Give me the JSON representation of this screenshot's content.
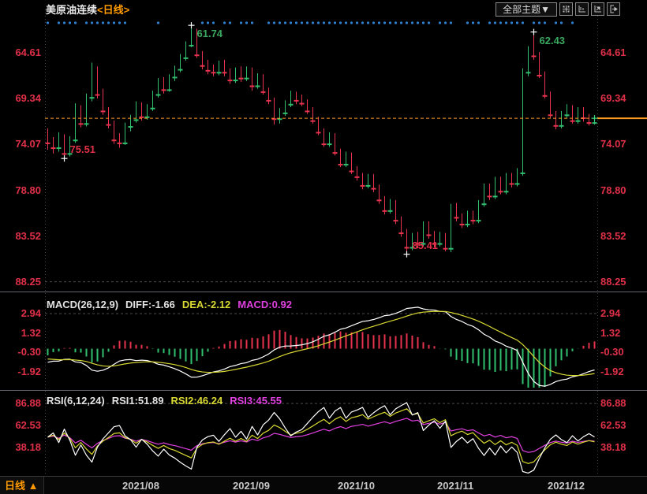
{
  "header": {
    "title": "美原油连续",
    "period_tag": "<日线>",
    "theme_button": "全部主题▼",
    "toolbar_icons": [
      "crosshair",
      "axis-settings",
      "axis-zoom",
      "exit"
    ]
  },
  "main_chart": {
    "last_price": 71.35,
    "annotations": [
      {
        "index": 3,
        "price": 75.51,
        "label": "75.51",
        "side": "high",
        "color": "#e03048"
      },
      {
        "index": 65,
        "price": 85.41,
        "label": "85.41",
        "side": "high",
        "color": "#e03048"
      },
      {
        "index": 26,
        "price": 61.74,
        "label": "61.74",
        "side": "low",
        "color": "#3aa85f"
      },
      {
        "index": 88,
        "price": 62.43,
        "label": "62.43",
        "side": "low",
        "color": "#3aa85f"
      }
    ],
    "signal_dot_indices": [
      0,
      2,
      3,
      4,
      5,
      7,
      8,
      9,
      10,
      11,
      12,
      13,
      14,
      20,
      28,
      29,
      30,
      32,
      33,
      35,
      36,
      37,
      40,
      41,
      42,
      43,
      44,
      45,
      46,
      47,
      48,
      49,
      50,
      51,
      52,
      53,
      54,
      55,
      56,
      57,
      58,
      59,
      60,
      61,
      62,
      63,
      64,
      65,
      66,
      67,
      68,
      69,
      71,
      72,
      73,
      76,
      77,
      78,
      80,
      81,
      82,
      83,
      84,
      85,
      86,
      88,
      89,
      90,
      92,
      93,
      95
    ]
  },
  "macd_panel": {
    "label": "MACD(26,12,9)",
    "diff_label": "DIFF:-1.66",
    "dea_label": "DEA:-2.12",
    "macd_label": "MACD:0.92",
    "params": [
      26,
      12,
      9
    ]
  },
  "rsi_panel": {
    "label": "RSI(6,12,24)",
    "rsi1_label": "RSI1:51.89",
    "rsi2_label": "RSI2:46.24",
    "rsi3_label": "RSI3:45.55",
    "params": [
      6,
      12,
      24
    ]
  },
  "bottom_bar": {
    "period_label": "日线",
    "arrow": "▲",
    "month_labels": [
      {
        "label": "2021/08",
        "index": 14
      },
      {
        "label": "2021/09",
        "index": 34
      },
      {
        "label": "2021/10",
        "index": 53
      },
      {
        "label": "2021/11",
        "index": 71
      },
      {
        "label": "2021/12",
        "index": 91
      }
    ]
  },
  "colors": {
    "up": "#e8334e",
    "down": "#31bf6e",
    "axis_text": "#e03048",
    "last_price_line": "#ff9b21",
    "signal_dot": "#2f80d0",
    "diff_line": "#ffffff",
    "dea_line": "#d8d832",
    "rsi3_line": "#e040e0",
    "grid": "#4a4a52",
    "divider": "#63636d"
  },
  "chart_data": {
    "type": "candlestick+indicators",
    "title": "美原油连续 <日线>",
    "x_axis_months": [
      "2021/08",
      "2021/09",
      "2021/10",
      "2021/11",
      "2021/12"
    ],
    "main_y_ticks": [
      88.25,
      83.52,
      78.8,
      74.07,
      69.34,
      64.61
    ],
    "main_y_range": [
      60.1,
      89.1
    ],
    "macd_y_ticks": [
      2.94,
      1.32,
      -0.3,
      -1.92
    ],
    "macd_y_range": [
      4.66,
      -3.4
    ],
    "rsi_y_ticks": [
      86.88,
      62.53,
      38.18
    ],
    "rsi_y_range": [
      100,
      10
    ],
    "last_close": 71.35,
    "candles": [
      [
        73.2,
        74.6,
        72.4,
        73.9
      ],
      [
        73.9,
        75.0,
        73.3,
        74.4
      ],
      [
        74.4,
        74.8,
        72.8,
        73.3
      ],
      [
        73.3,
        75.51,
        73.0,
        75.0
      ],
      [
        75.0,
        75.3,
        73.2,
        73.6
      ],
      [
        73.6,
        73.9,
        69.8,
        70.5
      ],
      [
        70.5,
        72.3,
        70.0,
        71.9
      ],
      [
        71.9,
        72.2,
        68.8,
        69.2
      ],
      [
        69.2,
        69.6,
        65.6,
        66.4
      ],
      [
        66.4,
        69.3,
        66.0,
        68.9
      ],
      [
        68.9,
        71.0,
        68.3,
        70.6
      ],
      [
        70.6,
        72.4,
        70.2,
        72.0
      ],
      [
        72.0,
        74.0,
        71.6,
        73.6
      ],
      [
        73.6,
        74.4,
        72.9,
        73.9
      ],
      [
        73.9,
        74.1,
        71.8,
        72.2
      ],
      [
        72.2,
        72.7,
        71.0,
        71.5
      ],
      [
        71.5,
        71.8,
        69.6,
        70.0
      ],
      [
        70.0,
        71.6,
        69.7,
        71.2
      ],
      [
        71.2,
        71.5,
        69.9,
        70.3
      ],
      [
        70.3,
        70.6,
        68.5,
        68.9
      ],
      [
        68.9,
        69.2,
        67.2,
        67.6
      ],
      [
        67.6,
        68.8,
        67.1,
        68.4
      ],
      [
        68.4,
        68.6,
        66.8,
        67.1
      ],
      [
        67.1,
        67.5,
        65.9,
        66.3
      ],
      [
        66.3,
        66.6,
        64.7,
        65.1
      ],
      [
        65.1,
        65.4,
        63.4,
        63.8
      ],
      [
        63.8,
        64.0,
        61.74,
        62.4
      ],
      [
        62.4,
        65.1,
        62.1,
        64.8
      ],
      [
        64.8,
        66.3,
        64.4,
        65.9
      ],
      [
        65.9,
        66.8,
        65.3,
        66.4
      ],
      [
        66.4,
        67.0,
        65.8,
        66.6
      ],
      [
        66.6,
        66.9,
        65.4,
        65.8
      ],
      [
        65.8,
        67.0,
        65.3,
        66.6
      ],
      [
        66.6,
        67.8,
        66.2,
        67.4
      ],
      [
        67.4,
        67.7,
        66.1,
        66.5
      ],
      [
        66.5,
        67.6,
        66.0,
        67.2
      ],
      [
        67.2,
        67.5,
        66.0,
        66.4
      ],
      [
        66.4,
        68.5,
        66.1,
        68.0
      ],
      [
        68.0,
        68.3,
        66.7,
        67.1
      ],
      [
        67.1,
        68.9,
        66.8,
        68.6
      ],
      [
        68.6,
        69.9,
        68.2,
        69.5
      ],
      [
        69.5,
        72.0,
        69.2,
        71.4
      ],
      [
        71.4,
        71.9,
        70.3,
        70.8
      ],
      [
        70.8,
        71.1,
        69.5,
        69.9
      ],
      [
        69.9,
        70.2,
        68.5,
        69.0
      ],
      [
        69.0,
        69.9,
        68.6,
        69.5
      ],
      [
        69.5,
        70.1,
        68.9,
        69.8
      ],
      [
        69.8,
        70.9,
        69.4,
        70.6
      ],
      [
        70.6,
        71.9,
        70.2,
        71.6
      ],
      [
        71.6,
        73.1,
        71.2,
        72.8
      ],
      [
        72.8,
        74.3,
        72.4,
        74.0
      ],
      [
        74.0,
        74.3,
        72.8,
        73.2
      ],
      [
        73.2,
        75.2,
        72.9,
        74.9
      ],
      [
        74.9,
        76.4,
        74.5,
        76.1
      ],
      [
        76.1,
        76.4,
        74.8,
        75.2
      ],
      [
        75.2,
        77.1,
        74.9,
        76.8
      ],
      [
        76.8,
        77.8,
        76.3,
        77.4
      ],
      [
        77.4,
        78.7,
        77.0,
        78.3
      ],
      [
        78.3,
        78.6,
        77.1,
        77.5
      ],
      [
        77.5,
        79.0,
        77.1,
        78.6
      ],
      [
        78.6,
        80.2,
        78.2,
        79.8
      ],
      [
        79.8,
        81.3,
        79.4,
        80.9
      ],
      [
        80.9,
        81.2,
        79.7,
        80.2
      ],
      [
        80.2,
        82.3,
        79.8,
        81.9
      ],
      [
        81.9,
        83.6,
        81.5,
        83.2
      ],
      [
        83.2,
        85.41,
        82.8,
        84.7
      ],
      [
        84.7,
        85.0,
        83.2,
        83.6
      ],
      [
        83.6,
        84.8,
        83.1,
        84.3
      ],
      [
        84.3,
        84.6,
        82.0,
        82.4
      ],
      [
        82.4,
        83.8,
        82.0,
        83.4
      ],
      [
        83.4,
        84.7,
        83.0,
        84.3
      ],
      [
        84.3,
        84.6,
        83.1,
        83.5
      ],
      [
        83.5,
        85.1,
        83.2,
        84.8
      ],
      [
        84.8,
        85.2,
        80.2,
        80.6
      ],
      [
        80.6,
        82.0,
        80.1,
        81.6
      ],
      [
        81.6,
        82.7,
        81.2,
        82.3
      ],
      [
        82.3,
        82.6,
        80.9,
        81.3
      ],
      [
        81.3,
        82.3,
        80.9,
        81.9
      ],
      [
        81.9,
        82.2,
        79.8,
        80.2
      ],
      [
        80.2,
        80.5,
        78.1,
        78.5
      ],
      [
        78.5,
        79.8,
        78.1,
        79.4
      ],
      [
        79.4,
        79.7,
        77.4,
        77.8
      ],
      [
        77.8,
        79.2,
        77.4,
        78.9
      ],
      [
        78.9,
        79.2,
        77.0,
        77.4
      ],
      [
        77.4,
        78.5,
        77.0,
        78.1
      ],
      [
        78.1,
        78.4,
        76.5,
        77.0
      ],
      [
        77.0,
        77.3,
        66.2,
        66.6
      ],
      [
        66.6,
        67.0,
        63.9,
        64.4
      ],
      [
        64.4,
        65.3,
        62.43,
        64.9
      ],
      [
        64.9,
        67.2,
        64.5,
        66.9
      ],
      [
        66.9,
        69.3,
        66.5,
        69.0
      ],
      [
        69.0,
        71.3,
        68.6,
        71.0
      ],
      [
        71.0,
        72.5,
        70.6,
        72.1
      ],
      [
        72.1,
        72.4,
        70.6,
        71.0
      ],
      [
        71.0,
        71.3,
        69.9,
        70.3
      ],
      [
        70.3,
        71.9,
        70.0,
        71.6
      ],
      [
        71.6,
        71.9,
        70.2,
        70.6
      ],
      [
        70.6,
        71.7,
        70.2,
        71.3
      ],
      [
        71.3,
        72.1,
        70.9,
        71.8
      ],
      [
        71.8,
        72.0,
        71.1,
        71.35
      ]
    ],
    "macd_readout": {
      "diff": -1.66,
      "dea": -2.12,
      "macd": 0.92
    },
    "rsi_readout": {
      "rsi1": 51.89,
      "rsi2": 46.24,
      "rsi3": 45.55
    }
  }
}
